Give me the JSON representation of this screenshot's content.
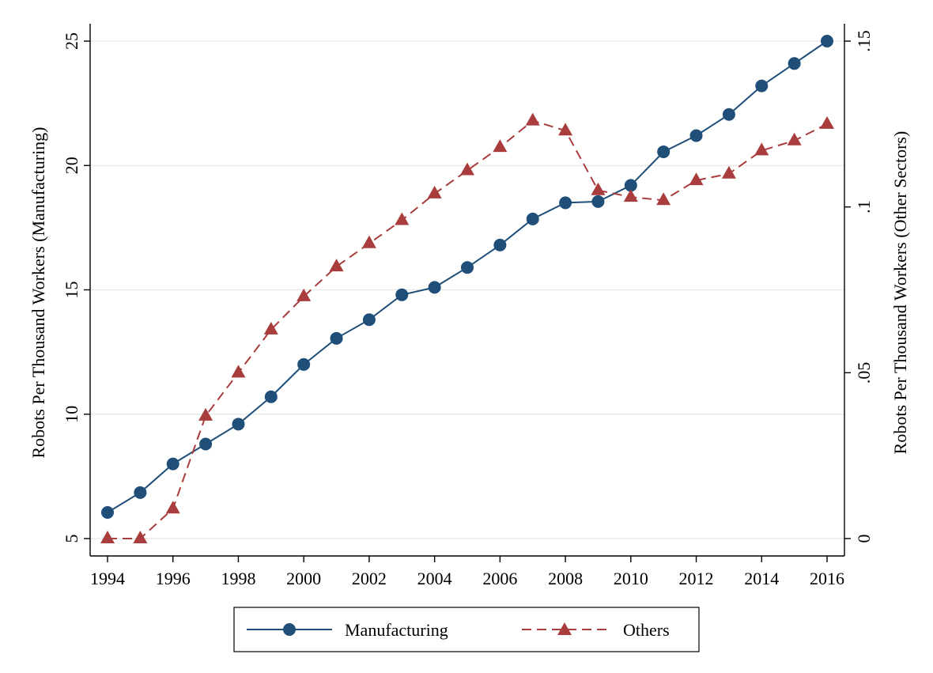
{
  "chart_data": {
    "type": "line",
    "x": [
      1994,
      1995,
      1996,
      1997,
      1998,
      1999,
      2000,
      2001,
      2002,
      2003,
      2004,
      2005,
      2006,
      2007,
      2008,
      2009,
      2010,
      2011,
      2012,
      2013,
      2014,
      2015,
      2016
    ],
    "xticks": [
      "1994",
      "1996",
      "1998",
      "2000",
      "2002",
      "2004",
      "2006",
      "2008",
      "2010",
      "2012",
      "2014",
      "2016"
    ],
    "xlim": [
      1994,
      2016
    ],
    "ylabel_left": "Robots Per Thousand Workers (Manufacturing)",
    "ylabel_right": "Robots Per Thousand Workers (Other Sectors)",
    "ylim_left": [
      5,
      25
    ],
    "ylim_right": [
      0,
      0.15
    ],
    "yticks_left": [
      {
        "value": 5,
        "label": "5"
      },
      {
        "value": 10,
        "label": "10"
      },
      {
        "value": 15,
        "label": "15"
      },
      {
        "value": 20,
        "label": "20"
      },
      {
        "value": 25,
        "label": "25"
      }
    ],
    "yticks_right": [
      {
        "value": 0,
        "label": "0"
      },
      {
        "value": 0.05,
        "label": ".05"
      },
      {
        "value": 0.1,
        "label": ".1"
      },
      {
        "value": 0.15,
        "label": ".15"
      }
    ],
    "grid": true,
    "legend_position": "bottom",
    "series": [
      {
        "name": "Manufacturing",
        "axis": "left",
        "color": "#1f4e79",
        "marker": "circle",
        "line": "solid",
        "values": [
          6.05,
          6.85,
          8.0,
          8.8,
          9.6,
          10.7,
          12.0,
          13.05,
          13.8,
          14.8,
          15.1,
          15.9,
          16.8,
          17.85,
          18.5,
          18.55,
          19.2,
          20.55,
          21.2,
          22.05,
          23.2,
          24.1,
          25.0
        ]
      },
      {
        "name": "Others",
        "axis": "right",
        "color": "#a93c3c",
        "marker": "triangle",
        "line": "dashed",
        "values": [
          0.0,
          0.0,
          0.009,
          0.037,
          0.05,
          0.063,
          0.073,
          0.082,
          0.089,
          0.096,
          0.104,
          0.111,
          0.118,
          0.126,
          0.123,
          0.105,
          0.103,
          0.102,
          0.108,
          0.11,
          0.117,
          0.12,
          0.125
        ]
      }
    ]
  }
}
